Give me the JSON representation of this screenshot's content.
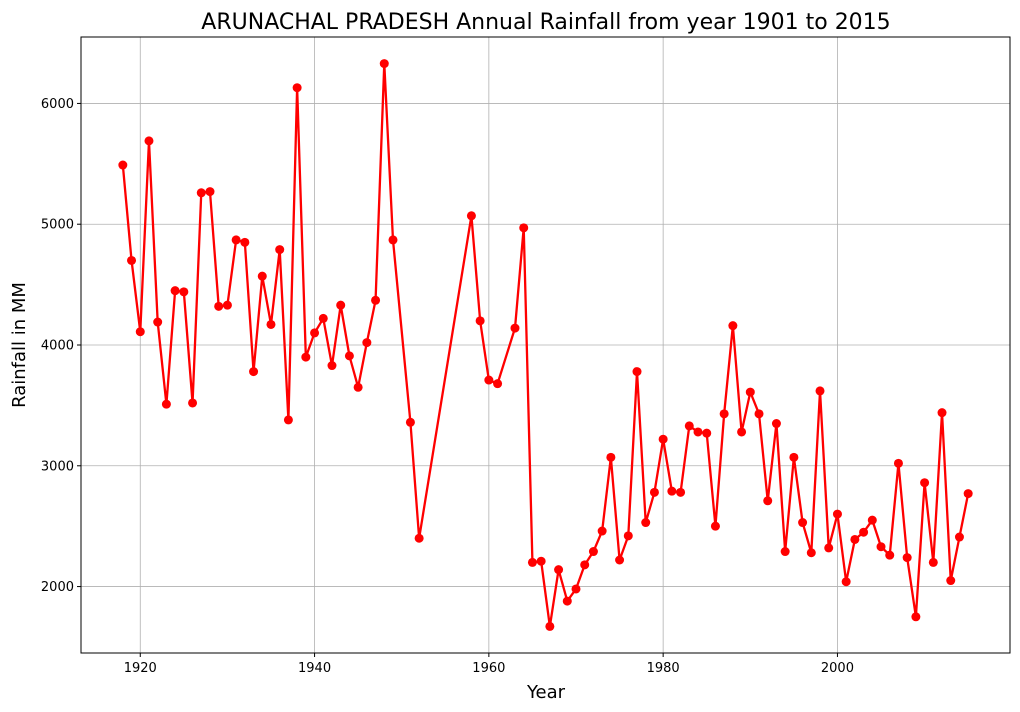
{
  "chart_data": {
    "type": "line",
    "title": "ARUNACHAL PRADESH Annual Rainfall from year 1901 to 2015",
    "xlabel": "Year",
    "ylabel": "Rainfall in MM",
    "xlim": [
      1913.2,
      1919.8
    ],
    "ylim": [
      1450,
      6550
    ],
    "xticks": [
      1920,
      1940,
      1960,
      1980,
      2000
    ],
    "yticks": [
      2000,
      3000,
      4000,
      5000,
      6000
    ],
    "grid": true,
    "line_color": "#ff0000",
    "marker": "circle",
    "series": [
      {
        "x": [
          1918,
          1919,
          1920,
          1921,
          1922,
          1923,
          1924,
          1925,
          1926,
          1927,
          1928,
          1929,
          1930,
          1931,
          1932,
          1933,
          1934,
          1935,
          1936,
          1937,
          1938,
          1939,
          1940,
          1941,
          1942,
          1943,
          1944,
          1945,
          1946,
          1947,
          1948,
          1949,
          1951,
          1952,
          1958,
          1959,
          1960,
          1961,
          1963,
          1964,
          1965,
          1966,
          1967,
          1968,
          1969,
          1970,
          1971,
          1972,
          1973,
          1974,
          1975,
          1976,
          1977,
          1978,
          1979,
          1980,
          1981,
          1982,
          1983,
          1984,
          1985,
          1986,
          1987,
          1988,
          1989,
          1990,
          1991,
          1992,
          1993,
          1994,
          1995,
          1996,
          1997,
          1998,
          1999,
          2000,
          2001,
          2002,
          2003,
          2004,
          2005,
          2006,
          2007,
          2008,
          2009,
          2010,
          2011,
          2012,
          2013,
          2014,
          2015
        ],
        "values": [
          5490,
          4700,
          4110,
          5690,
          4190,
          3510,
          4450,
          4440,
          3520,
          5260,
          5270,
          4320,
          4330,
          4870,
          4850,
          3780,
          4570,
          4170,
          4790,
          3380,
          6130,
          3900,
          4100,
          4220,
          3830,
          4330,
          3910,
          3650,
          4020,
          4370,
          6330,
          4870,
          3360,
          2400,
          5070,
          4200,
          3710,
          3680,
          4140,
          4970,
          2200,
          2210,
          1670,
          2140,
          1880,
          1980,
          2180,
          2290,
          2460,
          3070,
          2220,
          2420,
          3780,
          2530,
          2780,
          3220,
          2790,
          2780,
          3330,
          3280,
          3270,
          2500,
          3430,
          4160,
          3280,
          3610,
          3430,
          2710,
          3350,
          2290,
          3070,
          2530,
          2280,
          3620,
          2320,
          2600,
          2040,
          2390,
          2450,
          2550,
          2330,
          2260,
          3020,
          2240,
          1750,
          2860,
          2200,
          3440,
          2050,
          2410,
          2770
        ]
      }
    ]
  }
}
